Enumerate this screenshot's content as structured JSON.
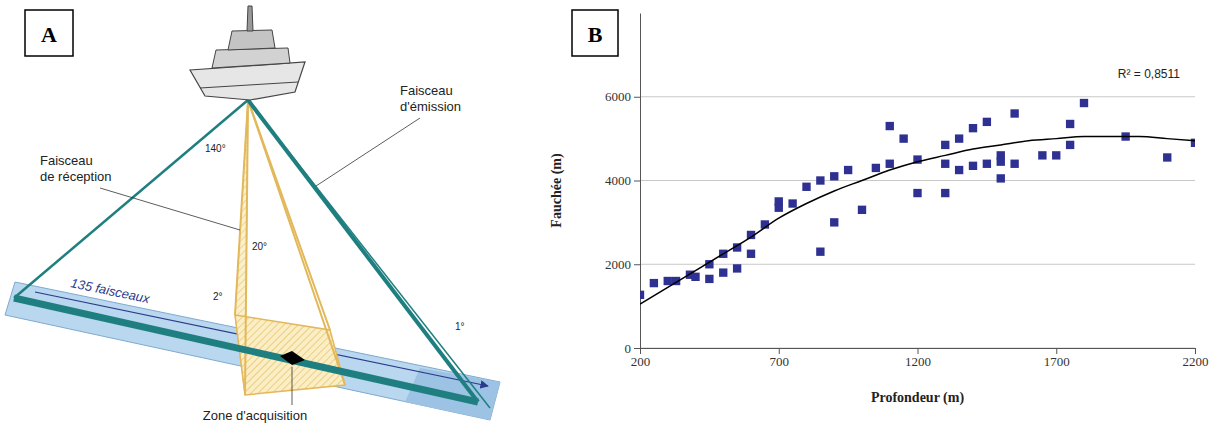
{
  "diagram": {
    "letter": "A",
    "receive_beam": "Faisceau de réception",
    "transmit_beam": "Faisceau d'émission",
    "angles": [
      "140°",
      "20°",
      "2°",
      "1°"
    ],
    "beam_count": "135 faisceaux",
    "footprint": "Zone d'acquisition"
  },
  "chart_data": {
    "type": "scatter",
    "panel_label": "B",
    "xlabel": "Profondeur (m)",
    "ylabel": "Fauchée (m)",
    "annotation": "R² = 0,8511",
    "xlim": [
      200,
      2200
    ],
    "xticks": [
      200,
      700,
      1200,
      1700,
      2200
    ],
    "ylim": [
      0,
      8000
    ],
    "yticks": [
      0,
      2000,
      4000,
      6000
    ],
    "grid": true,
    "series": [
      {
        "type": "scatter",
        "marker": "square",
        "color": "#2e3192",
        "x": [
          200,
          250,
          300,
          330,
          380,
          400,
          450,
          450,
          500,
          500,
          550,
          550,
          600,
          600,
          650,
          700,
          700,
          750,
          800,
          850,
          850,
          900,
          900,
          950,
          1000,
          1050,
          1100,
          1100,
          1150,
          1200,
          1200,
          1300,
          1300,
          1300,
          1350,
          1350,
          1400,
          1400,
          1450,
          1450,
          1500,
          1500,
          1500,
          1550,
          1550,
          1650,
          1700,
          1750,
          1750,
          1800,
          1950,
          2100,
          2200
        ],
        "values": [
          1270,
          1550,
          1600,
          1600,
          1750,
          1700,
          2000,
          1650,
          2250,
          1800,
          2400,
          1900,
          2700,
          2250,
          2950,
          3500,
          3350,
          3450,
          3850,
          4000,
          2300,
          4100,
          3000,
          4250,
          3300,
          4300,
          5300,
          4400,
          5000,
          4500,
          3700,
          4850,
          4400,
          3700,
          5000,
          4250,
          5250,
          4350,
          5400,
          4400,
          4600,
          4450,
          4050,
          5600,
          4400,
          4600,
          4600,
          5350,
          4850,
          5850,
          5050,
          4550,
          4900
        ]
      },
      {
        "type": "line",
        "color": "#000000",
        "x": [
          200,
          300,
          400,
          500,
          600,
          700,
          800,
          900,
          1000,
          1100,
          1200,
          1300,
          1400,
          1500,
          1600,
          1700,
          1800,
          1900,
          2000,
          2100,
          2200
        ],
        "values": [
          1050,
          1450,
          1850,
          2250,
          2650,
          3100,
          3450,
          3750,
          4000,
          4250,
          4450,
          4600,
          4750,
          4850,
          4950,
          5000,
          5050,
          5050,
          5050,
          5000,
          4950
        ]
      }
    ]
  }
}
